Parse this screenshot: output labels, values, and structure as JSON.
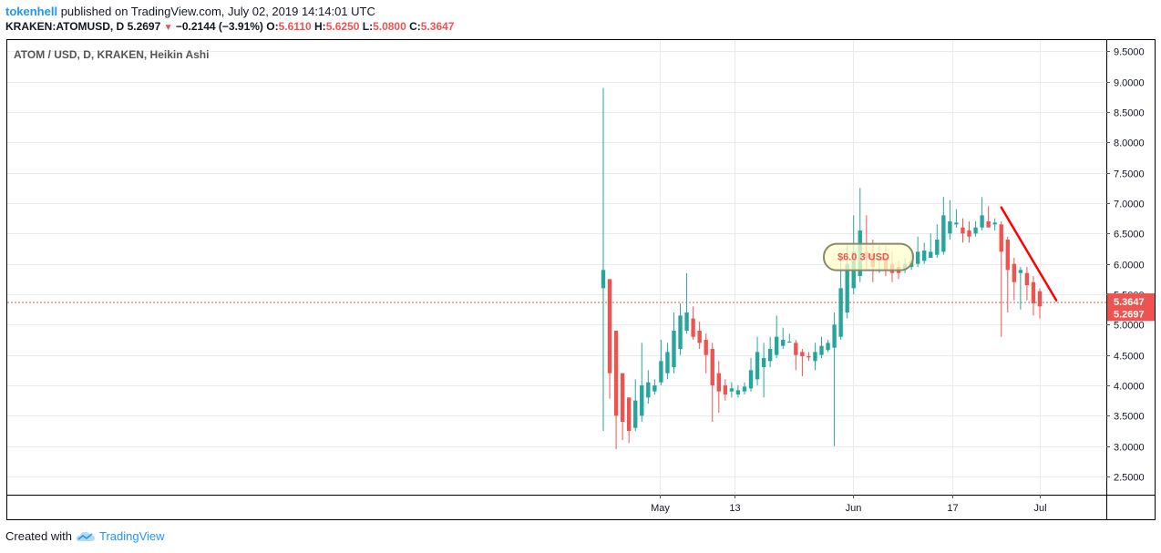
{
  "header": {
    "user": "tokenhell",
    "published": " published on TradingView.com, July 02, 2019 14:14:01 UTC",
    "symbol": "KRAKEN:ATOMUSD, D",
    "last": "5.2697",
    "arrow": "▼",
    "change": "−0.2144 (−3.91%)",
    "o_label": "O:",
    "o_value": "5.6110",
    "h_label": "H:",
    "h_value": "5.6250",
    "l_label": "L:",
    "l_value": "5.0800",
    "c_label": "C:",
    "c_value": "5.3647"
  },
  "footer": {
    "created_with": "Created with",
    "brand": "TradingView"
  },
  "colors": {
    "up": "#26a69a",
    "down": "#ef5350",
    "trendline": "#ff0000",
    "grid": "#e8ecf0",
    "axis_text": "#131722",
    "badge": "#ef5350"
  },
  "chart_data": {
    "type": "candlestick",
    "title": "ATOM / USD, D, KRAKEN, Heikin Ashi",
    "ylim": [
      2.2,
      9.7
    ],
    "y_ticks": [
      "2.5000",
      "3.0000",
      "3.5000",
      "4.0000",
      "4.5000",
      "5.0000",
      "5.5000",
      "6.0000",
      "6.5000",
      "7.0000",
      "7.5000",
      "8.0000",
      "8.5000",
      "9.0000",
      "9.5000"
    ],
    "x_ticks": [
      {
        "label": "May",
        "date": "2019-05-01"
      },
      {
        "label": "13",
        "date": "2019-05-13"
      },
      {
        "label": "Jun",
        "date": "2019-06-01"
      },
      {
        "label": "17",
        "date": "2019-06-17"
      },
      {
        "label": "Jul",
        "date": "2019-07-01"
      }
    ],
    "date_range": [
      "2019-04-22",
      "2019-07-02"
    ],
    "candles": [
      {
        "o": 5.6,
        "h": 8.9,
        "l": 3.25,
        "c": 5.9
      },
      {
        "o": 5.75,
        "h": 5.75,
        "l": 3.78,
        "c": 4.2
      },
      {
        "o": 4.9,
        "h": 4.9,
        "l": 2.95,
        "c": 3.5
      },
      {
        "o": 4.2,
        "h": 4.2,
        "l": 3.1,
        "c": 3.4
      },
      {
        "o": 3.8,
        "h": 3.8,
        "l": 3.05,
        "c": 3.25
      },
      {
        "o": 3.3,
        "h": 4.1,
        "l": 3.25,
        "c": 3.75
      },
      {
        "o": 3.5,
        "h": 4.7,
        "l": 3.4,
        "c": 4.0
      },
      {
        "o": 3.8,
        "h": 4.25,
        "l": 3.7,
        "c": 4.05
      },
      {
        "o": 3.9,
        "h": 4.1,
        "l": 3.85,
        "c": 4.0
      },
      {
        "o": 4.05,
        "h": 4.75,
        "l": 4.0,
        "c": 4.4
      },
      {
        "o": 4.2,
        "h": 4.7,
        "l": 4.1,
        "c": 4.55
      },
      {
        "o": 4.3,
        "h": 5.2,
        "l": 4.2,
        "c": 4.9
      },
      {
        "o": 4.6,
        "h": 5.35,
        "l": 4.5,
        "c": 5.15
      },
      {
        "o": 4.9,
        "h": 5.85,
        "l": 4.85,
        "c": 5.2
      },
      {
        "o": 5.1,
        "h": 5.3,
        "l": 4.75,
        "c": 4.8
      },
      {
        "o": 4.9,
        "h": 5.05,
        "l": 4.6,
        "c": 4.7
      },
      {
        "o": 4.75,
        "h": 4.85,
        "l": 4.2,
        "c": 4.5
      },
      {
        "o": 4.6,
        "h": 4.7,
        "l": 3.4,
        "c": 4.0
      },
      {
        "o": 4.2,
        "h": 4.4,
        "l": 3.55,
        "c": 3.9
      },
      {
        "o": 4.0,
        "h": 4.1,
        "l": 3.75,
        "c": 3.85
      },
      {
        "o": 3.9,
        "h": 4.05,
        "l": 3.8,
        "c": 3.95
      },
      {
        "o": 3.85,
        "h": 4.0,
        "l": 3.8,
        "c": 3.92
      },
      {
        "o": 3.9,
        "h": 4.05,
        "l": 3.85,
        "c": 3.98
      },
      {
        "o": 3.95,
        "h": 4.45,
        "l": 3.9,
        "c": 4.25
      },
      {
        "o": 4.1,
        "h": 4.8,
        "l": 4.0,
        "c": 4.55
      },
      {
        "o": 4.3,
        "h": 4.7,
        "l": 3.8,
        "c": 4.45
      },
      {
        "o": 4.4,
        "h": 4.8,
        "l": 4.3,
        "c": 4.6
      },
      {
        "o": 4.5,
        "h": 5.15,
        "l": 4.45,
        "c": 4.8
      },
      {
        "o": 4.65,
        "h": 4.95,
        "l": 4.6,
        "c": 4.75
      },
      {
        "o": 4.72,
        "h": 4.85,
        "l": 4.7,
        "c": 4.72
      },
      {
        "o": 4.7,
        "h": 4.75,
        "l": 4.25,
        "c": 4.5
      },
      {
        "o": 4.55,
        "h": 4.6,
        "l": 4.15,
        "c": 4.48
      },
      {
        "o": 4.48,
        "h": 4.55,
        "l": 4.4,
        "c": 4.46
      },
      {
        "o": 4.4,
        "h": 4.7,
        "l": 4.25,
        "c": 4.55
      },
      {
        "o": 4.5,
        "h": 4.8,
        "l": 4.45,
        "c": 4.65
      },
      {
        "o": 4.58,
        "h": 4.75,
        "l": 4.55,
        "c": 4.7
      },
      {
        "o": 4.62,
        "h": 5.2,
        "l": 3.0,
        "c": 5.0
      },
      {
        "o": 4.8,
        "h": 6.1,
        "l": 4.75,
        "c": 5.6
      },
      {
        "o": 5.2,
        "h": 6.3,
        "l": 5.1,
        "c": 6.0
      },
      {
        "o": 5.6,
        "h": 6.8,
        "l": 5.5,
        "c": 6.2
      },
      {
        "o": 5.8,
        "h": 7.25,
        "l": 5.7,
        "c": 6.55
      },
      {
        "o": 6.2,
        "h": 6.8,
        "l": 5.9,
        "c": 6.1
      },
      {
        "o": 6.15,
        "h": 6.4,
        "l": 5.7,
        "c": 5.95
      },
      {
        "o": 6.05,
        "h": 6.3,
        "l": 5.85,
        "c": 6.1
      },
      {
        "o": 6.1,
        "h": 6.3,
        "l": 5.8,
        "c": 5.9
      },
      {
        "o": 6.0,
        "h": 6.2,
        "l": 5.7,
        "c": 5.85
      },
      {
        "o": 5.95,
        "h": 6.05,
        "l": 5.75,
        "c": 5.85
      },
      {
        "o": 5.9,
        "h": 6.1,
        "l": 5.85,
        "c": 6.0
      },
      {
        "o": 5.95,
        "h": 6.2,
        "l": 5.9,
        "c": 6.05
      },
      {
        "o": 6.0,
        "h": 6.45,
        "l": 5.95,
        "c": 6.2
      },
      {
        "o": 6.05,
        "h": 6.35,
        "l": 6.0,
        "c": 6.22
      },
      {
        "o": 6.1,
        "h": 6.5,
        "l": 6.1,
        "c": 6.2
      },
      {
        "o": 6.15,
        "h": 6.65,
        "l": 6.1,
        "c": 6.4
      },
      {
        "o": 6.2,
        "h": 7.1,
        "l": 6.15,
        "c": 6.8
      },
      {
        "o": 6.5,
        "h": 7.05,
        "l": 6.4,
        "c": 6.7
      },
      {
        "o": 6.65,
        "h": 6.9,
        "l": 6.6,
        "c": 6.68
      },
      {
        "o": 6.6,
        "h": 6.75,
        "l": 6.35,
        "c": 6.5
      },
      {
        "o": 6.55,
        "h": 6.7,
        "l": 6.35,
        "c": 6.45
      },
      {
        "o": 6.5,
        "h": 6.7,
        "l": 6.45,
        "c": 6.6
      },
      {
        "o": 6.6,
        "h": 7.1,
        "l": 6.55,
        "c": 6.8
      },
      {
        "o": 6.7,
        "h": 6.95,
        "l": 6.6,
        "c": 6.6
      },
      {
        "o": 6.65,
        "h": 6.75,
        "l": 6.55,
        "c": 6.68
      },
      {
        "o": 6.65,
        "h": 6.7,
        "l": 4.8,
        "c": 6.2
      },
      {
        "o": 6.4,
        "h": 6.45,
        "l": 5.2,
        "c": 5.9
      },
      {
        "o": 6.0,
        "h": 6.1,
        "l": 5.4,
        "c": 5.7
      },
      {
        "o": 5.85,
        "h": 5.95,
        "l": 5.25,
        "c": 5.9
      },
      {
        "o": 5.85,
        "h": 5.95,
        "l": 5.4,
        "c": 5.65
      },
      {
        "o": 5.7,
        "h": 5.8,
        "l": 5.15,
        "c": 5.35
      },
      {
        "o": 5.55,
        "h": 5.6,
        "l": 5.1,
        "c": 5.3
      }
    ],
    "trendline": {
      "from": {
        "index": 62,
        "value": 6.93
      },
      "to": {
        "index": 70,
        "value": 5.4
      }
    },
    "annotation": "$6.0  3 USD",
    "annotation_value": 6.12,
    "price_labels": [
      {
        "value": 5.3647,
        "text": "5.3647"
      },
      {
        "value": 5.2697,
        "text": "5.2697"
      }
    ],
    "price_line": 5.3647,
    "grid": true,
    "legend": "none"
  }
}
